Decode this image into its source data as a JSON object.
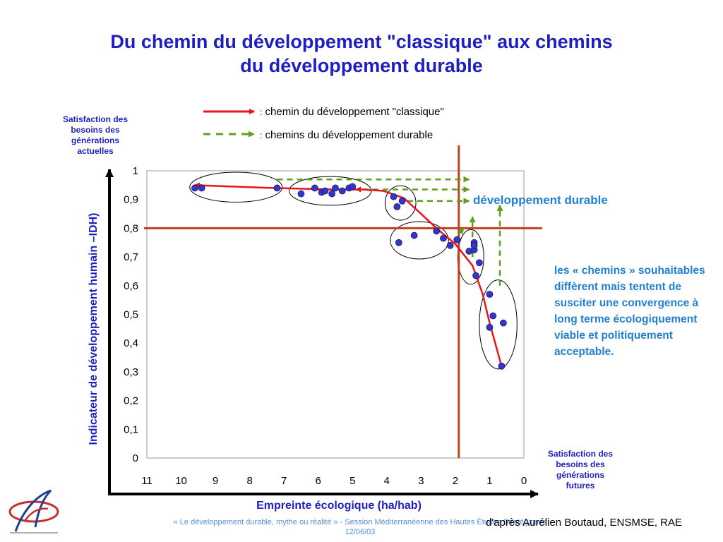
{
  "slide": {
    "title_line1": "Du chemin du développement \"classique\" aux chemins",
    "title_line2": "du développement durable",
    "legend_colon": ":",
    "legend_red": "chemin du développement \"classique\"",
    "legend_green": "chemins du développement durable",
    "top_left_note": [
      "Satisfaction des",
      "besoins des",
      "générations",
      "actuelles"
    ],
    "bottom_right_note": [
      "Satisfaction des",
      "besoins des",
      "générations",
      "futures"
    ],
    "zone_label": "développement durable",
    "comment": "les « chemins » souhaitables diffèrent mais tentent de susciter une convergence à long terme écologiquement viable et politiquement acceptable.",
    "footer_line1": "« Le développement durable, mythe ou réalité » - Session Méditerranéenne des Hautes Études Stratégiques",
    "footer_line2": "12/06/03",
    "credit": "d'après Aurélien Boutaud, ENSMSE, RAE",
    "colors": {
      "title": "#1f1fbf",
      "red_path": "#e8141b",
      "green_path": "#5ea01e",
      "threshold_lines": "#c0421d",
      "points": "#3535cc",
      "accent_text": "#1f7fd1"
    }
  },
  "chart_data": {
    "type": "scatter",
    "xlabel": "Empreinte écologique (ha/hab)",
    "ylabel": "Indicateur de développement humain –IDH)",
    "xlim": [
      11,
      0
    ],
    "ylim": [
      0,
      1
    ],
    "x_ticks": [
      "11",
      "10",
      "9",
      "8",
      "7",
      "6",
      "5",
      "4",
      "3",
      "2",
      "1",
      "0"
    ],
    "y_ticks": [
      "0",
      "0,1",
      "0,2",
      "0,3",
      "0,4",
      "0,5",
      "0,6",
      "0,7",
      "0,8",
      "0,9",
      "1"
    ],
    "x_axis_reversed": true,
    "thresholds": {
      "x": 1.9,
      "y": 0.8
    },
    "points": [
      {
        "x": 9.6,
        "y": 0.94
      },
      {
        "x": 9.4,
        "y": 0.94
      },
      {
        "x": 7.2,
        "y": 0.94
      },
      {
        "x": 6.5,
        "y": 0.92
      },
      {
        "x": 6.1,
        "y": 0.94
      },
      {
        "x": 5.9,
        "y": 0.925
      },
      {
        "x": 5.8,
        "y": 0.93
      },
      {
        "x": 5.6,
        "y": 0.92
      },
      {
        "x": 5.5,
        "y": 0.94
      },
      {
        "x": 5.3,
        "y": 0.93
      },
      {
        "x": 5.1,
        "y": 0.94
      },
      {
        "x": 5.0,
        "y": 0.945
      },
      {
        "x": 3.8,
        "y": 0.91
      },
      {
        "x": 3.7,
        "y": 0.875
      },
      {
        "x": 3.55,
        "y": 0.895
      },
      {
        "x": 3.65,
        "y": 0.75
      },
      {
        "x": 3.2,
        "y": 0.775
      },
      {
        "x": 2.55,
        "y": 0.79
      },
      {
        "x": 2.35,
        "y": 0.765
      },
      {
        "x": 2.15,
        "y": 0.74
      },
      {
        "x": 1.95,
        "y": 0.76
      },
      {
        "x": 1.6,
        "y": 0.72
      },
      {
        "x": 1.45,
        "y": 0.75
      },
      {
        "x": 1.45,
        "y": 0.725
      },
      {
        "x": 1.45,
        "y": 0.74
      },
      {
        "x": 1.3,
        "y": 0.68
      },
      {
        "x": 1.4,
        "y": 0.635
      },
      {
        "x": 1.0,
        "y": 0.57
      },
      {
        "x": 0.9,
        "y": 0.495
      },
      {
        "x": 1.0,
        "y": 0.455
      },
      {
        "x": 0.6,
        "y": 0.47
      },
      {
        "x": 0.65,
        "y": 0.32
      }
    ],
    "classic_path": [
      {
        "x": 9.6,
        "y": 0.95
      },
      {
        "x": 7.3,
        "y": 0.94
      },
      {
        "x": 5.6,
        "y": 0.935
      },
      {
        "x": 4.7,
        "y": 0.935
      },
      {
        "x": 4.1,
        "y": 0.93
      },
      {
        "x": 3.5,
        "y": 0.905
      },
      {
        "x": 3.0,
        "y": 0.85
      },
      {
        "x": 2.5,
        "y": 0.795
      },
      {
        "x": 2.0,
        "y": 0.745
      },
      {
        "x": 1.5,
        "y": 0.67
      },
      {
        "x": 1.2,
        "y": 0.57
      },
      {
        "x": 1.0,
        "y": 0.47
      },
      {
        "x": 0.65,
        "y": 0.32
      }
    ],
    "sustainable_paths": [
      [
        {
          "x": 1.9,
          "y": 0.78
        },
        {
          "x": 1.75,
          "y": 0.8
        }
      ],
      [
        {
          "x": 1.5,
          "y": 0.7
        },
        {
          "x": 1.5,
          "y": 0.84
        }
      ],
      [
        {
          "x": 0.7,
          "y": 0.6
        },
        {
          "x": 0.7,
          "y": 0.88
        }
      ]
    ],
    "sustainable_horizontals": [
      {
        "y": 0.97,
        "x_from": 7.2,
        "x_to": 1.6
      },
      {
        "y": 0.935,
        "x_from": 4.7,
        "x_to": 1.6
      },
      {
        "y": 0.895,
        "x_from": 3.4,
        "x_to": 1.6
      }
    ],
    "cluster_ellipses": [
      {
        "cx": 8.4,
        "cy": 0.943,
        "rx": 1.35,
        "ry": 0.052
      },
      {
        "cx": 5.65,
        "cy": 0.93,
        "rx": 1.2,
        "ry": 0.05
      },
      {
        "cx": 3.6,
        "cy": 0.888,
        "rx": 0.45,
        "ry": 0.06
      },
      {
        "cx": 3.05,
        "cy": 0.758,
        "rx": 0.85,
        "ry": 0.065
      },
      {
        "cx": 1.55,
        "cy": 0.7,
        "rx": 0.38,
        "ry": 0.095
      },
      {
        "cx": 0.75,
        "cy": 0.465,
        "rx": 0.55,
        "ry": 0.155
      }
    ]
  }
}
